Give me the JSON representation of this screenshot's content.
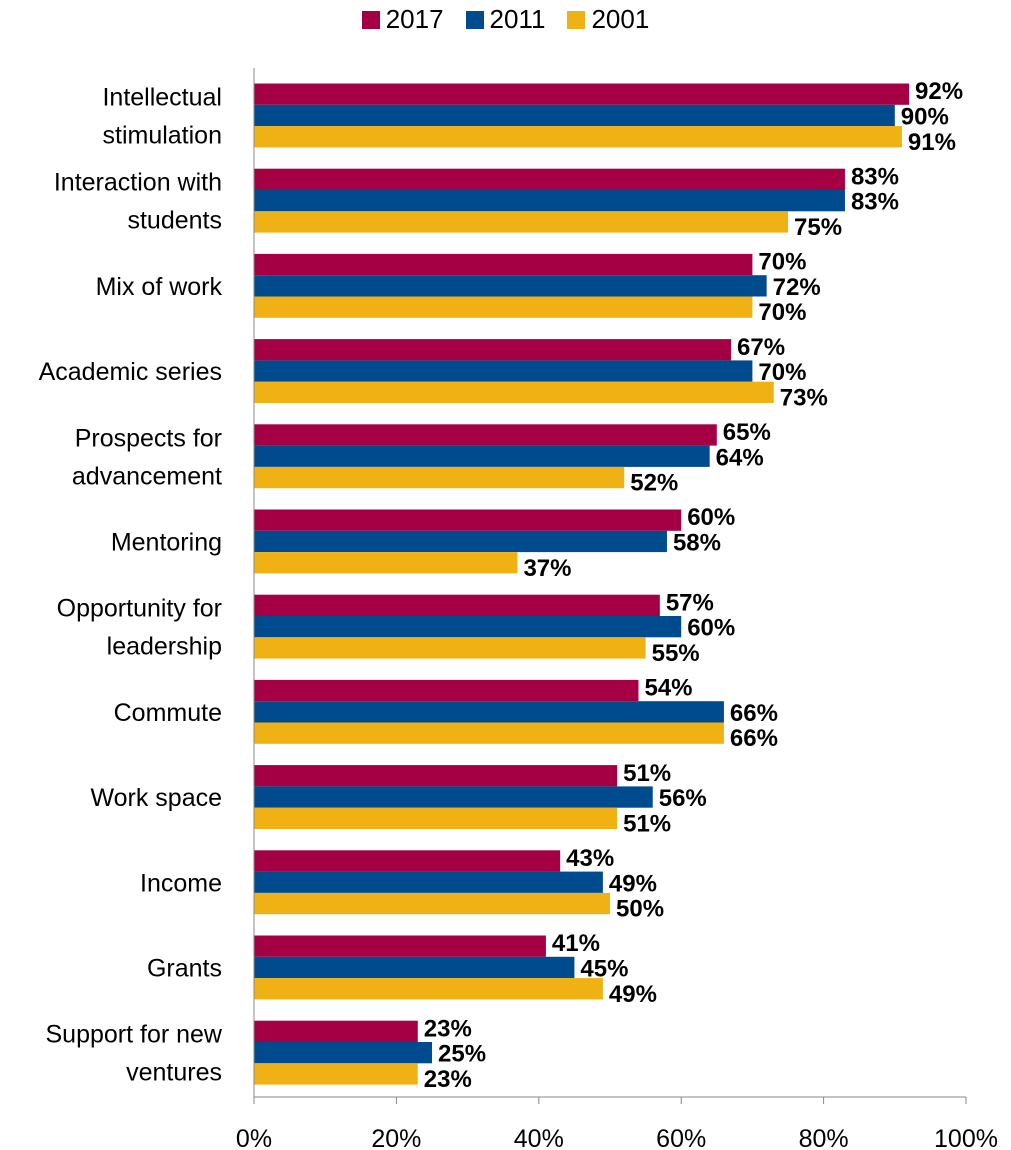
{
  "chart_data": {
    "type": "bar",
    "orientation": "horizontal",
    "categories": [
      [
        "Intellectual",
        "stimulation"
      ],
      [
        "Interaction with",
        "students"
      ],
      [
        "Mix of work"
      ],
      [
        "Academic series"
      ],
      [
        "Prospects for",
        "advancement"
      ],
      [
        "Mentoring"
      ],
      [
        "Opportunity for",
        "leadership"
      ],
      [
        "Commute"
      ],
      [
        "Work space"
      ],
      [
        "Income"
      ],
      [
        "Grants"
      ],
      [
        "Support for new",
        "ventures"
      ]
    ],
    "series": [
      {
        "name": "2017",
        "color": "#A50044",
        "values": [
          92,
          83,
          70,
          67,
          65,
          60,
          57,
          54,
          51,
          43,
          41,
          23
        ]
      },
      {
        "name": "2011",
        "color": "#004B8D",
        "values": [
          90,
          83,
          72,
          70,
          64,
          58,
          60,
          66,
          56,
          49,
          45,
          25
        ]
      },
      {
        "name": "2001",
        "color": "#F0B114",
        "values": [
          91,
          75,
          70,
          73,
          52,
          37,
          55,
          66,
          51,
          50,
          49,
          23
        ]
      }
    ],
    "xlim": [
      0,
      100
    ],
    "xticks": [
      "0%",
      "20%",
      "40%",
      "60%",
      "80%",
      "100%"
    ],
    "value_suffix": "%",
    "legend_position": "top-center",
    "grid": false
  }
}
